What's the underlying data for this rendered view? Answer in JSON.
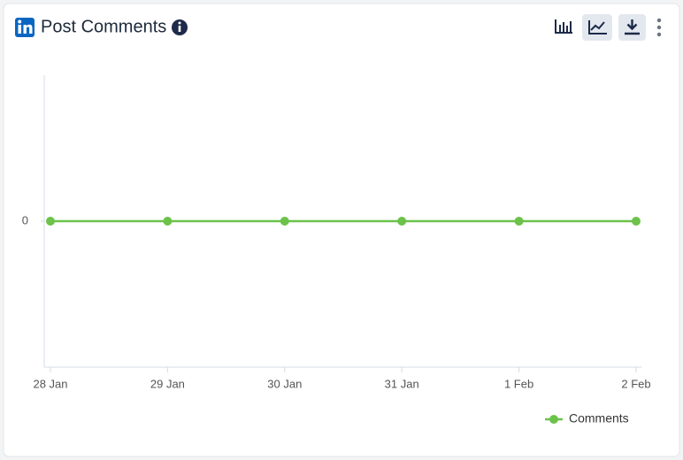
{
  "chart_data": {
    "type": "line",
    "title": "Post Comments",
    "categories": [
      "28 Jan",
      "29 Jan",
      "30 Jan",
      "31 Jan",
      "1 Feb",
      "2 Feb"
    ],
    "series": [
      {
        "name": "Comments",
        "color": "#6cc24a",
        "values": [
          0,
          0,
          0,
          0,
          0,
          0
        ]
      }
    ],
    "ylim": [
      -1,
      1
    ],
    "yticks": [
      0
    ],
    "legend": "bottom-right"
  }
}
